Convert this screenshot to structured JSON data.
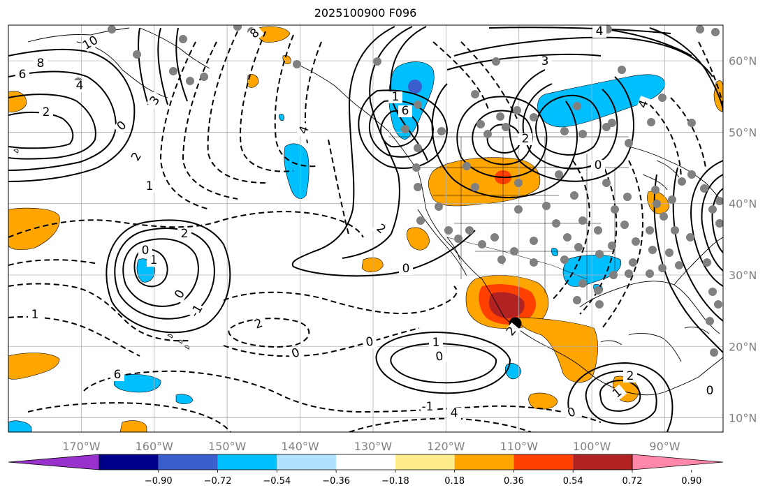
{
  "title": "2025100900 F096",
  "map": {
    "projection": "plate-carree",
    "lon_range": [
      -180,
      -82
    ],
    "lat_range": [
      8,
      65
    ],
    "lat_ticks": [
      "60°N",
      "50°N",
      "40°N",
      "30°N",
      "20°N",
      "10°N"
    ],
    "lon_ticks": [
      "170°W",
      "160°W",
      "150°W",
      "140°W",
      "130°W",
      "120°W",
      "110°W",
      "100°W",
      "90°W"
    ],
    "grid": true,
    "contour_color": "#000000",
    "contour_labels": [
      "10",
      "8",
      "6",
      "4",
      "2",
      "0",
      "3",
      "2",
      "1",
      "0",
      "-1",
      "1",
      "2",
      "0",
      "1",
      "2",
      "0",
      "0",
      "1",
      "0",
      "-1",
      "4",
      "6",
      "2",
      "0",
      "4",
      "3",
      "6",
      "2",
      "0",
      "4",
      "1",
      "2",
      "0",
      "1",
      "2",
      "0",
      "8",
      "4"
    ],
    "marker": {
      "lon": -110.5,
      "lat": 23.2,
      "color": "#000000"
    },
    "station_color": "#808080"
  },
  "colorbar": {
    "colors": [
      "#9932CC",
      "#00008B",
      "#3A5FCD",
      "#00BFFF",
      "#B0E2FF",
      "#FFFFFF",
      "#FFEC8B",
      "#FFA500",
      "#FF4000",
      "#B22222",
      "#FF88AA"
    ],
    "tick_labels": [
      "−0.90",
      "−0.72",
      "−0.54",
      "−0.36",
      "−0.18",
      "0.18",
      "0.36",
      "0.54",
      "0.72",
      "0.90"
    ]
  }
}
